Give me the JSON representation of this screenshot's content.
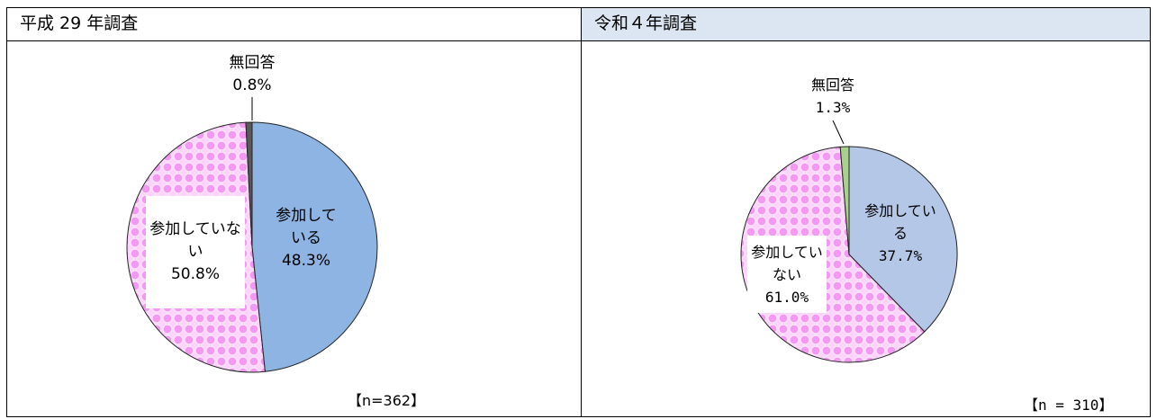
{
  "chart_data": [
    {
      "type": "pie",
      "title": "平成 29 年調査",
      "categories": [
        "参加している",
        "参加していない",
        "無回答"
      ],
      "values": [
        48.3,
        50.8,
        0.8
      ],
      "value_labels": [
        "48.3%",
        "50.8%",
        "0.8%"
      ],
      "colors": [
        "#8eb4e3",
        "pattern",
        "#595959"
      ],
      "note": "【n=362】"
    },
    {
      "type": "pie",
      "title": "令和４年調査",
      "categories": [
        "参加している",
        "参加していない",
        "無回答"
      ],
      "values": [
        37.7,
        61.0,
        1.3
      ],
      "value_labels": [
        "37.7%",
        "61.0%",
        "1.3%"
      ],
      "colors": [
        "#b4c7e7",
        "pattern",
        "#a9d18e"
      ],
      "note": "【n = 310】"
    }
  ]
}
